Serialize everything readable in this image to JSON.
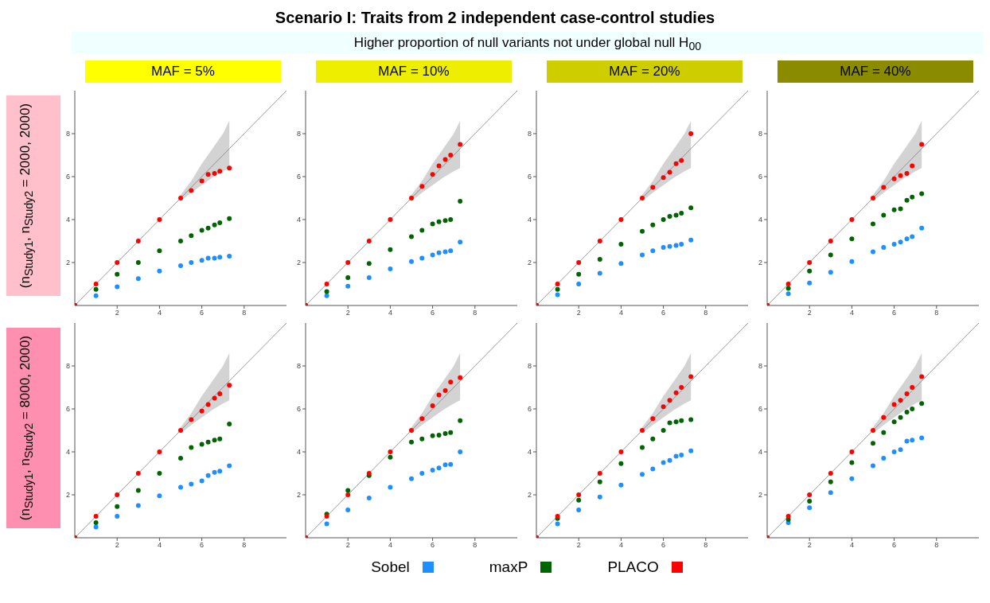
{
  "chart_data": [
    {
      "type": "scatter",
      "title": "MAF = 5%",
      "ylabel": "(n$_{Study1}$, n$_{Study2}$ = 2000, 2000)",
      "annotations": [
        "Scenario I: Traits from 2 independent case-control studies",
        "Higher proportion of null variants not under global null H$_{00}$"
      ],
      "xlim": [
        0,
        10
      ],
      "ylim": [
        0,
        10
      ],
      "xticks": [
        2,
        4,
        6,
        8
      ],
      "yticks": [
        2,
        4,
        6,
        8
      ],
      "grid": false,
      "marker": "circle",
      "x": [
        0,
        1,
        2,
        3,
        4,
        5,
        5.5,
        6,
        6.3,
        6.6,
        6.85,
        7.3
      ],
      "series": [
        {
          "type": "line",
          "color": "#808080",
          "line_style": "solid",
          "x": [
            0,
            5,
            5.5,
            6,
            6.5,
            7,
            7.3,
            10
          ],
          "values": [
            0,
            5,
            5.5,
            6,
            6.5,
            7,
            7.3,
            10
          ],
          "lower": [
            null,
            4.85,
            5.25,
            5.6,
            5.95,
            6.25,
            6.4,
            null
          ],
          "upper": [
            null,
            5.15,
            5.8,
            6.6,
            7.3,
            8.0,
            8.6,
            null
          ],
          "marker": "none"
        },
        {
          "color": "#1e8fff",
          "values": [
            0,
            0.45,
            0.87,
            1.25,
            1.6,
            1.85,
            2.0,
            2.1,
            2.2,
            2.2,
            2.25,
            2.3
          ]
        },
        {
          "color": "#006400",
          "values": [
            0,
            0.75,
            1.45,
            2.0,
            2.55,
            3.0,
            3.25,
            3.5,
            3.6,
            3.75,
            3.85,
            4.05
          ]
        },
        {
          "color": "#ff0000",
          "values": [
            0,
            1,
            2,
            3,
            4,
            5,
            5.35,
            5.8,
            6.1,
            6.15,
            6.25,
            6.4
          ]
        }
      ]
    },
    {
      "type": "scatter",
      "title": "MAF = 10%",
      "xlim": [
        0,
        10
      ],
      "ylim": [
        0,
        10
      ],
      "xticks": [
        2,
        4,
        6,
        8
      ],
      "yticks": [
        2,
        4,
        6,
        8
      ],
      "grid": false,
      "marker": "circle",
      "x": [
        0,
        1,
        2,
        3,
        4,
        5,
        5.5,
        6,
        6.3,
        6.6,
        6.85,
        7.3
      ],
      "series": [
        {
          "type": "line",
          "color": "#808080",
          "line_style": "solid",
          "x": [
            0,
            5,
            5.5,
            6,
            6.5,
            7,
            7.3,
            10
          ],
          "values": [
            0,
            5,
            5.5,
            6,
            6.5,
            7,
            7.3,
            10
          ],
          "lower": [
            null,
            4.85,
            5.25,
            5.6,
            5.95,
            6.25,
            6.4,
            null
          ],
          "upper": [
            null,
            5.15,
            5.8,
            6.6,
            7.3,
            8.0,
            8.6,
            null
          ],
          "marker": "none"
        },
        {
          "color": "#1e8fff",
          "values": [
            0,
            0.45,
            0.9,
            1.3,
            1.7,
            2.05,
            2.2,
            2.35,
            2.45,
            2.5,
            2.55,
            2.95
          ]
        },
        {
          "color": "#006400",
          "values": [
            0,
            0.65,
            1.3,
            1.95,
            2.6,
            3.2,
            3.5,
            3.8,
            3.9,
            3.95,
            4.0,
            4.85
          ]
        },
        {
          "color": "#ff0000",
          "values": [
            0,
            1,
            2,
            3,
            4,
            5,
            5.55,
            6.1,
            6.5,
            6.8,
            7.0,
            7.5
          ]
        }
      ]
    },
    {
      "type": "scatter",
      "title": "MAF = 20%",
      "xlim": [
        0,
        10
      ],
      "ylim": [
        0,
        10
      ],
      "xticks": [
        2,
        4,
        6,
        8
      ],
      "yticks": [
        2,
        4,
        6,
        8
      ],
      "grid": false,
      "marker": "circle",
      "x": [
        0,
        1,
        2,
        3,
        4,
        5,
        5.5,
        6,
        6.3,
        6.6,
        6.85,
        7.3
      ],
      "series": [
        {
          "type": "line",
          "color": "#808080",
          "line_style": "solid",
          "x": [
            0,
            5,
            5.5,
            6,
            6.5,
            7,
            7.3,
            10
          ],
          "values": [
            0,
            5,
            5.5,
            6,
            6.5,
            7,
            7.3,
            10
          ],
          "lower": [
            null,
            4.85,
            5.25,
            5.6,
            5.95,
            6.25,
            6.4,
            null
          ],
          "upper": [
            null,
            5.15,
            5.8,
            6.6,
            7.3,
            8.0,
            8.6,
            null
          ],
          "marker": "none"
        },
        {
          "color": "#1e8fff",
          "values": [
            0,
            0.5,
            1.0,
            1.5,
            1.95,
            2.35,
            2.55,
            2.7,
            2.75,
            2.8,
            2.85,
            3.05
          ]
        },
        {
          "color": "#006400",
          "values": [
            0,
            0.75,
            1.45,
            2.15,
            2.85,
            3.45,
            3.75,
            4.0,
            4.15,
            4.2,
            4.3,
            4.55
          ]
        },
        {
          "color": "#ff0000",
          "values": [
            0,
            1,
            2,
            3,
            4,
            5,
            5.5,
            5.95,
            6.2,
            6.6,
            6.75,
            8.0
          ]
        }
      ]
    },
    {
      "type": "scatter",
      "title": "MAF = 40%",
      "xlim": [
        0,
        10
      ],
      "ylim": [
        0,
        10
      ],
      "xticks": [
        2,
        4,
        6,
        8
      ],
      "yticks": [
        2,
        4,
        6,
        8
      ],
      "grid": false,
      "marker": "circle",
      "x": [
        0,
        1,
        2,
        3,
        4,
        5,
        5.5,
        6,
        6.3,
        6.6,
        6.85,
        7.3
      ],
      "series": [
        {
          "type": "line",
          "color": "#808080",
          "line_style": "solid",
          "x": [
            0,
            5,
            5.5,
            6,
            6.5,
            7,
            7.3,
            10
          ],
          "values": [
            0,
            5,
            5.5,
            6,
            6.5,
            7,
            7.3,
            10
          ],
          "lower": [
            null,
            4.85,
            5.25,
            5.6,
            5.95,
            6.25,
            6.4,
            null
          ],
          "upper": [
            null,
            5.15,
            5.8,
            6.6,
            7.3,
            8.0,
            8.6,
            null
          ],
          "marker": "none"
        },
        {
          "color": "#1e8fff",
          "values": [
            0,
            0.55,
            1.05,
            1.55,
            2.05,
            2.5,
            2.7,
            2.85,
            2.95,
            3.1,
            3.2,
            3.6
          ]
        },
        {
          "color": "#006400",
          "values": [
            0,
            0.8,
            1.6,
            2.35,
            3.1,
            3.8,
            4.2,
            4.45,
            4.5,
            4.9,
            5.05,
            5.2
          ]
        },
        {
          "color": "#ff0000",
          "values": [
            0,
            1,
            2,
            3,
            4,
            5,
            5.5,
            5.9,
            6.05,
            6.15,
            6.5,
            7.5
          ]
        }
      ]
    },
    {
      "type": "scatter",
      "ylabel": "(n$_{Study1}$, n$_{Study2}$ = 8000, 2000)",
      "legend": "bottom",
      "xlim": [
        0,
        10
      ],
      "ylim": [
        0,
        10
      ],
      "xticks": [
        2,
        4,
        6,
        8
      ],
      "yticks": [
        2,
        4,
        6,
        8
      ],
      "grid": false,
      "marker": "circle",
      "x": [
        0,
        1,
        2,
        3,
        4,
        5,
        5.5,
        6,
        6.3,
        6.6,
        6.85,
        7.3
      ],
      "series": [
        {
          "type": "line",
          "color": "#808080",
          "line_style": "solid",
          "x": [
            0,
            5,
            5.5,
            6,
            6.5,
            7,
            7.3,
            10
          ],
          "values": [
            0,
            5,
            5.5,
            6,
            6.5,
            7,
            7.3,
            10
          ],
          "lower": [
            null,
            4.85,
            5.25,
            5.6,
            5.95,
            6.25,
            6.4,
            null
          ],
          "upper": [
            null,
            5.15,
            5.8,
            6.6,
            7.3,
            8.0,
            8.6,
            null
          ],
          "marker": "none"
        },
        {
          "name": "Sobel",
          "color": "#1e8fff",
          "values": [
            0,
            0.5,
            1.0,
            1.5,
            1.95,
            2.35,
            2.5,
            2.65,
            2.9,
            3.05,
            3.1,
            3.35
          ]
        },
        {
          "name": "maxP",
          "color": "#006400",
          "values": [
            0,
            0.7,
            1.45,
            2.2,
            3.0,
            3.7,
            4.2,
            4.35,
            4.45,
            4.55,
            4.6,
            5.3
          ]
        },
        {
          "name": "PLACO",
          "color": "#ff0000",
          "values": [
            0,
            1,
            2,
            3,
            4,
            5,
            5.5,
            5.9,
            6.2,
            6.5,
            6.7,
            7.1
          ]
        }
      ]
    },
    {
      "type": "scatter",
      "xlim": [
        0,
        10
      ],
      "ylim": [
        0,
        10
      ],
      "xticks": [
        2,
        4,
        6,
        8
      ],
      "yticks": [
        2,
        4,
        6,
        8
      ],
      "grid": false,
      "marker": "circle",
      "x": [
        0,
        1,
        2,
        3,
        4,
        5,
        5.5,
        6,
        6.3,
        6.6,
        6.85,
        7.3
      ],
      "series": [
        {
          "type": "line",
          "color": "#808080",
          "line_style": "solid",
          "x": [
            0,
            5,
            5.5,
            6,
            6.5,
            7,
            7.3,
            10
          ],
          "values": [
            0,
            5,
            5.5,
            6,
            6.5,
            7,
            7.3,
            10
          ],
          "lower": [
            null,
            4.85,
            5.25,
            5.6,
            5.95,
            6.25,
            6.4,
            null
          ],
          "upper": [
            null,
            5.15,
            5.8,
            6.6,
            7.3,
            8.0,
            8.6,
            null
          ],
          "marker": "none"
        },
        {
          "color": "#1e8fff",
          "values": [
            0,
            0.65,
            1.3,
            1.85,
            2.35,
            2.75,
            3.0,
            3.15,
            3.25,
            3.4,
            3.42,
            4.0
          ]
        },
        {
          "color": "#006400",
          "values": [
            0,
            1.1,
            2.2,
            2.9,
            3.75,
            4.45,
            4.6,
            4.75,
            4.78,
            4.85,
            4.9,
            5.45
          ]
        },
        {
          "color": "#ff0000",
          "values": [
            0,
            1,
            2,
            3,
            4,
            5,
            5.55,
            6.15,
            6.65,
            6.85,
            7.25,
            7.45
          ]
        }
      ]
    },
    {
      "type": "scatter",
      "xlim": [
        0,
        10
      ],
      "ylim": [
        0,
        10
      ],
      "xticks": [
        2,
        4,
        6,
        8
      ],
      "yticks": [
        2,
        4,
        6,
        8
      ],
      "grid": false,
      "marker": "circle",
      "x": [
        0,
        1,
        2,
        3,
        4,
        5,
        5.5,
        6,
        6.3,
        6.6,
        6.85,
        7.3
      ],
      "series": [
        {
          "type": "line",
          "color": "#808080",
          "line_style": "solid",
          "x": [
            0,
            5,
            5.5,
            6,
            6.5,
            7,
            7.3,
            10
          ],
          "values": [
            0,
            5,
            5.5,
            6,
            6.5,
            7,
            7.3,
            10
          ],
          "lower": [
            null,
            4.85,
            5.25,
            5.6,
            5.95,
            6.25,
            6.4,
            null
          ],
          "upper": [
            null,
            5.15,
            5.8,
            6.6,
            7.3,
            8.0,
            8.6,
            null
          ],
          "marker": "none"
        },
        {
          "color": "#1e8fff",
          "values": [
            0,
            0.65,
            1.3,
            1.9,
            2.45,
            2.95,
            3.2,
            3.5,
            3.6,
            3.8,
            3.85,
            4.05
          ]
        },
        {
          "color": "#006400",
          "values": [
            0,
            0.9,
            1.75,
            2.6,
            3.45,
            4.2,
            4.6,
            5.0,
            5.35,
            5.4,
            5.45,
            5.5
          ]
        },
        {
          "color": "#ff0000",
          "values": [
            0,
            1,
            2,
            3,
            4,
            5,
            5.55,
            6.1,
            6.4,
            6.75,
            7.0,
            7.5
          ]
        }
      ]
    },
    {
      "type": "scatter",
      "xlim": [
        0,
        10
      ],
      "ylim": [
        0,
        10
      ],
      "xticks": [
        2,
        4,
        6,
        8
      ],
      "yticks": [
        2,
        4,
        6,
        8
      ],
      "grid": false,
      "marker": "circle",
      "x": [
        0,
        1,
        2,
        3,
        4,
        5,
        5.5,
        6,
        6.3,
        6.6,
        6.85,
        7.3
      ],
      "series": [
        {
          "type": "line",
          "color": "#808080",
          "line_style": "solid",
          "x": [
            0,
            5,
            5.5,
            6,
            6.5,
            7,
            7.3,
            10
          ],
          "values": [
            0,
            5,
            5.5,
            6,
            6.5,
            7,
            7.3,
            10
          ],
          "lower": [
            null,
            4.85,
            5.25,
            5.6,
            5.95,
            6.25,
            6.4,
            null
          ],
          "upper": [
            null,
            5.15,
            5.8,
            6.6,
            7.3,
            8.0,
            8.6,
            null
          ],
          "marker": "none"
        },
        {
          "color": "#1e8fff",
          "values": [
            0,
            0.7,
            1.4,
            2.1,
            2.75,
            3.35,
            3.7,
            4.0,
            4.1,
            4.5,
            4.55,
            4.65
          ]
        },
        {
          "color": "#006400",
          "values": [
            0,
            0.85,
            1.7,
            2.6,
            3.5,
            4.4,
            4.9,
            5.4,
            5.6,
            5.85,
            6.0,
            6.25
          ]
        },
        {
          "color": "#ff0000",
          "values": [
            0,
            1,
            2,
            3,
            4,
            5,
            5.6,
            6.2,
            6.4,
            6.7,
            7.0,
            7.5
          ]
        }
      ]
    }
  ]
}
